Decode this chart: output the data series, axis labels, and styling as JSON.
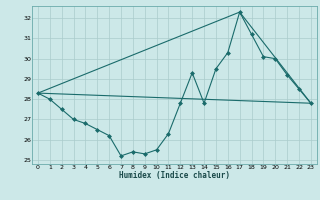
{
  "title": "",
  "xlabel": "Humidex (Indice chaleur)",
  "background_color": "#cce8e8",
  "grid_color": "#aacccc",
  "line_color": "#1a6b6b",
  "xlim_min": -0.5,
  "xlim_max": 23.5,
  "ylim_min": 24.8,
  "ylim_max": 32.6,
  "yticks": [
    25,
    26,
    27,
    28,
    29,
    30,
    31,
    32
  ],
  "xticks": [
    0,
    1,
    2,
    3,
    4,
    5,
    6,
    7,
    8,
    9,
    10,
    11,
    12,
    13,
    14,
    15,
    16,
    17,
    18,
    19,
    20,
    21,
    22,
    23
  ],
  "series1_x": [
    0,
    1,
    2,
    3,
    4,
    5,
    6,
    7,
    8,
    9,
    10,
    11,
    12,
    13,
    14,
    15,
    16,
    17,
    18,
    19,
    20,
    21,
    22,
    23
  ],
  "series1_y": [
    28.3,
    28.0,
    27.5,
    27.0,
    26.8,
    26.5,
    26.2,
    25.2,
    25.4,
    25.3,
    25.5,
    26.3,
    27.8,
    29.3,
    27.8,
    29.5,
    30.3,
    32.3,
    31.2,
    30.1,
    30.0,
    29.2,
    28.5,
    27.8
  ],
  "series2_x": [
    0,
    23
  ],
  "series2_y": [
    28.3,
    27.8
  ],
  "series3_x": [
    0,
    17,
    23
  ],
  "series3_y": [
    28.3,
    32.3,
    27.8
  ]
}
